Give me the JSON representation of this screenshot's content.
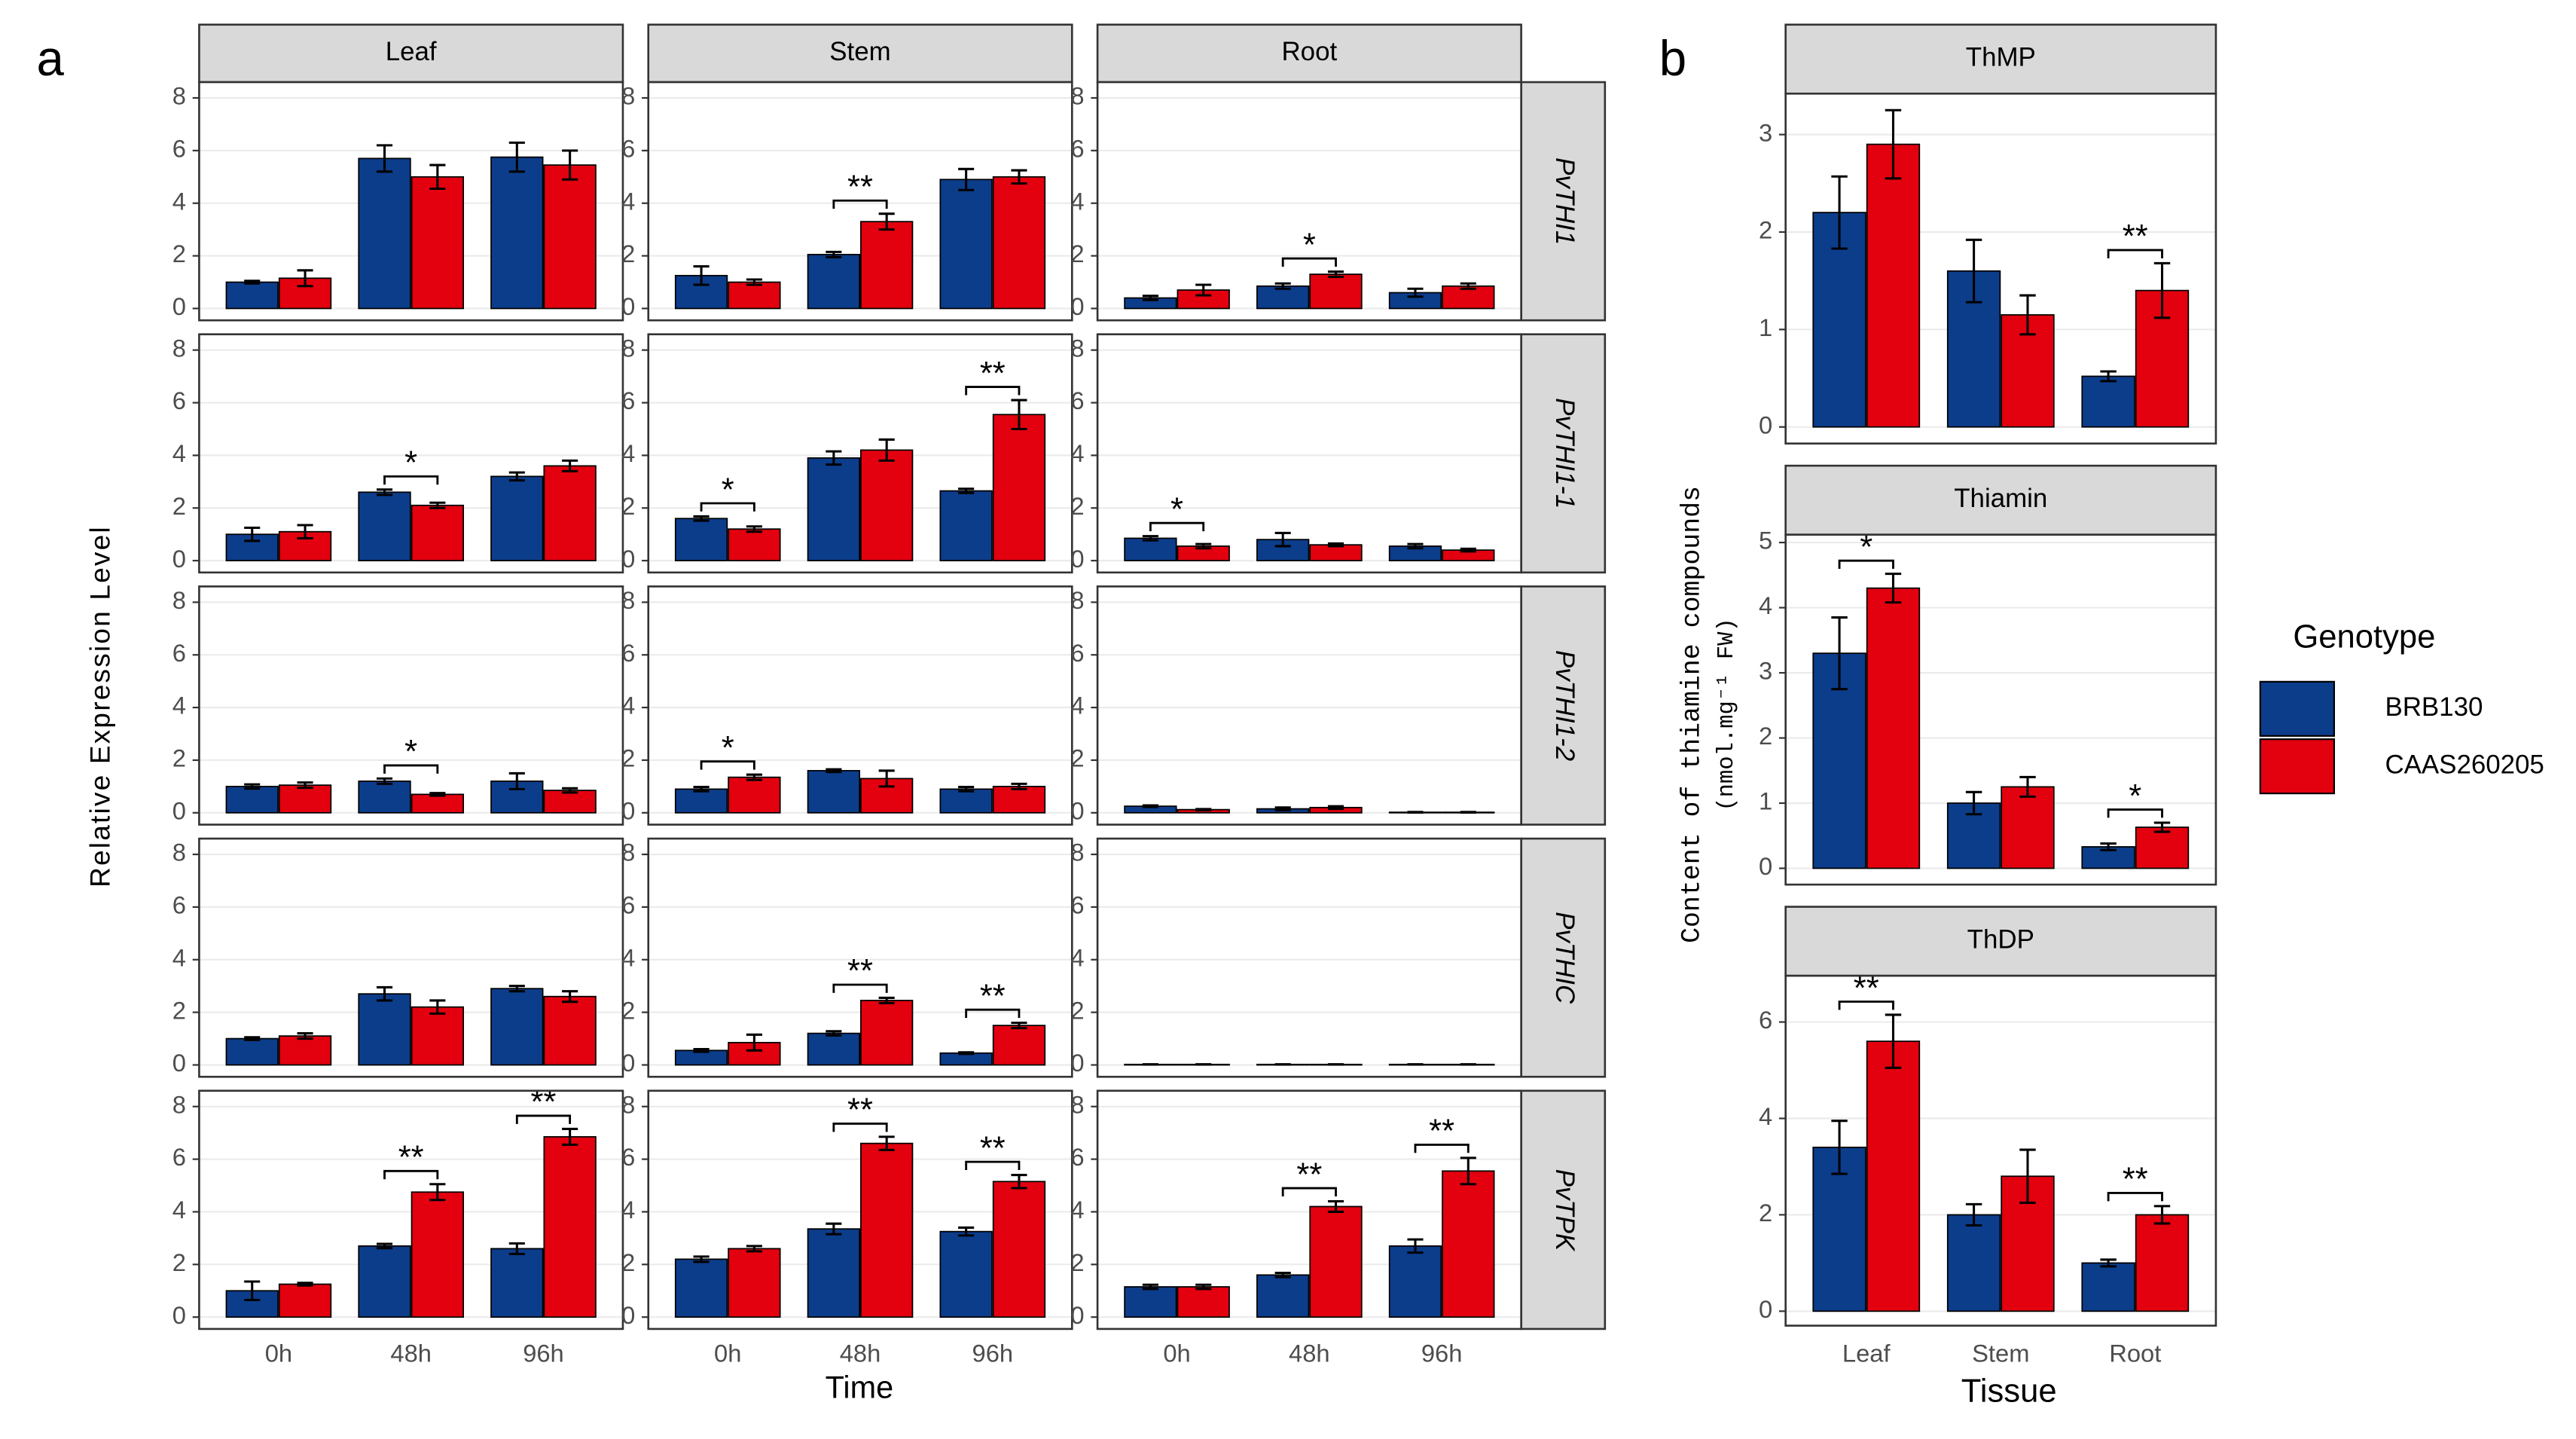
{
  "chart_data": [
    {
      "type": "bar",
      "panel_label": "a",
      "x_label": "Time",
      "y_label": "Relative Expression Level",
      "col_facets": [
        "Leaf",
        "Stem",
        "Root"
      ],
      "row_facets": [
        "PvTHI1",
        "PvTHI1-1",
        "PvTHI1-2",
        "PvTHIC",
        "PvTPK"
      ],
      "categories": [
        "0h",
        "48h",
        "96h"
      ],
      "ylim": [
        -0.45,
        8.6
      ],
      "yticks": [
        0,
        2,
        4,
        6,
        8
      ],
      "grid": true,
      "panels": [
        [
          {
            "values": [
              [
                1.0,
                5.7,
                5.75
              ],
              [
                1.15,
                5.0,
                5.45
              ]
            ],
            "errors": [
              [
                0.05,
                0.5,
                0.55
              ],
              [
                0.3,
                0.45,
                0.55
              ]
            ],
            "sig": [
              null,
              null,
              null
            ]
          },
          {
            "values": [
              [
                1.25,
                2.05,
                4.9
              ],
              [
                1.0,
                3.3,
                5.0
              ]
            ],
            "errors": [
              [
                0.35,
                0.1,
                0.4
              ],
              [
                0.1,
                0.3,
                0.25
              ]
            ],
            "sig": [
              null,
              "**",
              null
            ]
          },
          {
            "values": [
              [
                0.4,
                0.85,
                0.6
              ],
              [
                0.7,
                1.3,
                0.85
              ]
            ],
            "errors": [
              [
                0.08,
                0.1,
                0.15
              ],
              [
                0.2,
                0.1,
                0.1
              ]
            ],
            "sig": [
              null,
              "*",
              null
            ]
          }
        ],
        [
          {
            "values": [
              [
                1.0,
                2.6,
                3.2
              ],
              [
                1.1,
                2.1,
                3.6
              ]
            ],
            "errors": [
              [
                0.25,
                0.1,
                0.15
              ],
              [
                0.25,
                0.1,
                0.2
              ]
            ],
            "sig": [
              null,
              "*",
              null
            ]
          },
          {
            "values": [
              [
                1.6,
                3.9,
                2.65
              ],
              [
                1.2,
                4.2,
                5.55
              ]
            ],
            "errors": [
              [
                0.08,
                0.25,
                0.08
              ],
              [
                0.1,
                0.4,
                0.55
              ]
            ],
            "sig": [
              "*",
              null,
              "**"
            ]
          },
          {
            "values": [
              [
                0.85,
                0.8,
                0.55
              ],
              [
                0.55,
                0.6,
                0.4
              ]
            ],
            "errors": [
              [
                0.08,
                0.25,
                0.08
              ],
              [
                0.08,
                0.05,
                0.05
              ]
            ],
            "sig": [
              "*",
              null,
              null
            ]
          }
        ],
        [
          {
            "values": [
              [
                1.0,
                1.2,
                1.2
              ],
              [
                1.05,
                0.7,
                0.85
              ]
            ],
            "errors": [
              [
                0.08,
                0.1,
                0.3
              ],
              [
                0.1,
                0.05,
                0.08
              ]
            ],
            "sig": [
              null,
              "*",
              null
            ]
          },
          {
            "values": [
              [
                0.9,
                1.6,
                0.9
              ],
              [
                1.35,
                1.3,
                1.0
              ]
            ],
            "errors": [
              [
                0.08,
                0.05,
                0.08
              ],
              [
                0.1,
                0.3,
                0.1
              ]
            ],
            "sig": [
              "*",
              null,
              null
            ]
          },
          {
            "values": [
              [
                0.25,
                0.15,
                0.02
              ],
              [
                0.12,
                0.2,
                0.02
              ]
            ],
            "errors": [
              [
                0.03,
                0.05,
                0.01
              ],
              [
                0.02,
                0.05,
                0.01
              ]
            ],
            "sig": [
              null,
              null,
              null
            ]
          }
        ],
        [
          {
            "values": [
              [
                1.0,
                2.7,
                2.9
              ],
              [
                1.1,
                2.2,
                2.6
              ]
            ],
            "errors": [
              [
                0.05,
                0.25,
                0.1
              ],
              [
                0.1,
                0.25,
                0.2
              ]
            ],
            "sig": [
              null,
              null,
              null
            ]
          },
          {
            "values": [
              [
                0.55,
                1.2,
                0.45
              ],
              [
                0.85,
                2.45,
                1.5
              ]
            ],
            "errors": [
              [
                0.05,
                0.08,
                0.03
              ],
              [
                0.3,
                0.1,
                0.1
              ]
            ],
            "sig": [
              null,
              "**",
              "**"
            ]
          },
          {
            "values": [
              [
                0.02,
                0.02,
                0.02
              ],
              [
                0.02,
                0.02,
                0.02
              ]
            ],
            "errors": [
              [
                0.005,
                0.005,
                0.005
              ],
              [
                0.005,
                0.005,
                0.005
              ]
            ],
            "sig": [
              null,
              null,
              null
            ]
          }
        ],
        [
          {
            "values": [
              [
                1.0,
                2.7,
                2.6
              ],
              [
                1.25,
                4.75,
                6.85
              ]
            ],
            "errors": [
              [
                0.35,
                0.08,
                0.2
              ],
              [
                0.05,
                0.3,
                0.3
              ]
            ],
            "sig": [
              null,
              "**",
              "**"
            ]
          },
          {
            "values": [
              [
                2.2,
                3.35,
                3.25
              ],
              [
                2.6,
                6.6,
                5.15
              ]
            ],
            "errors": [
              [
                0.1,
                0.2,
                0.15
              ],
              [
                0.1,
                0.25,
                0.25
              ]
            ],
            "sig": [
              null,
              "**",
              "**"
            ]
          },
          {
            "values": [
              [
                1.15,
                1.6,
                2.7
              ],
              [
                1.15,
                4.2,
                5.55
              ]
            ],
            "errors": [
              [
                0.08,
                0.08,
                0.25
              ],
              [
                0.08,
                0.2,
                0.5
              ]
            ],
            "sig": [
              null,
              "**",
              "**"
            ]
          }
        ]
      ]
    },
    {
      "type": "bar",
      "panel_label": "b",
      "x_label": "Tissue",
      "y_label": "Content of thiamine compounds",
      "y_label_units": "(nmol.mg⁻¹ FW)",
      "categories": [
        "Leaf",
        "Stem",
        "Root"
      ],
      "grid": true,
      "legend_title": "Genotype",
      "series": [
        {
          "name": "BRB130",
          "color": "#0c3d8b"
        },
        {
          "name": "CAAS260205",
          "color": "#e3000f"
        }
      ],
      "facets": [
        {
          "title": "ThMP",
          "ylim": [
            -0.17,
            3.42
          ],
          "yticks": [
            0,
            1,
            2,
            3
          ],
          "values": [
            [
              2.2,
              1.6,
              0.52
            ],
            [
              2.9,
              1.15,
              1.4
            ]
          ],
          "errors": [
            [
              0.37,
              0.32,
              0.05
            ],
            [
              0.35,
              0.2,
              0.28
            ]
          ],
          "sig": [
            null,
            null,
            "**"
          ]
        },
        {
          "title": "Thiamin",
          "ylim": [
            -0.25,
            5.12
          ],
          "yticks": [
            0,
            1,
            2,
            3,
            4,
            5
          ],
          "values": [
            [
              3.3,
              1.0,
              0.33
            ],
            [
              4.3,
              1.25,
              0.63
            ]
          ],
          "errors": [
            [
              0.55,
              0.17,
              0.05
            ],
            [
              0.22,
              0.15,
              0.07
            ]
          ],
          "sig": [
            "*",
            null,
            "*"
          ]
        },
        {
          "title": "ThDP",
          "ylim": [
            -0.3,
            6.96
          ],
          "yticks": [
            0,
            2,
            4,
            6
          ],
          "values": [
            [
              3.4,
              2.0,
              1.0
            ],
            [
              5.6,
              2.8,
              2.0
            ]
          ],
          "errors": [
            [
              0.55,
              0.22,
              0.07
            ],
            [
              0.55,
              0.55,
              0.18
            ]
          ],
          "sig": [
            "**",
            null,
            "**"
          ]
        }
      ]
    }
  ]
}
